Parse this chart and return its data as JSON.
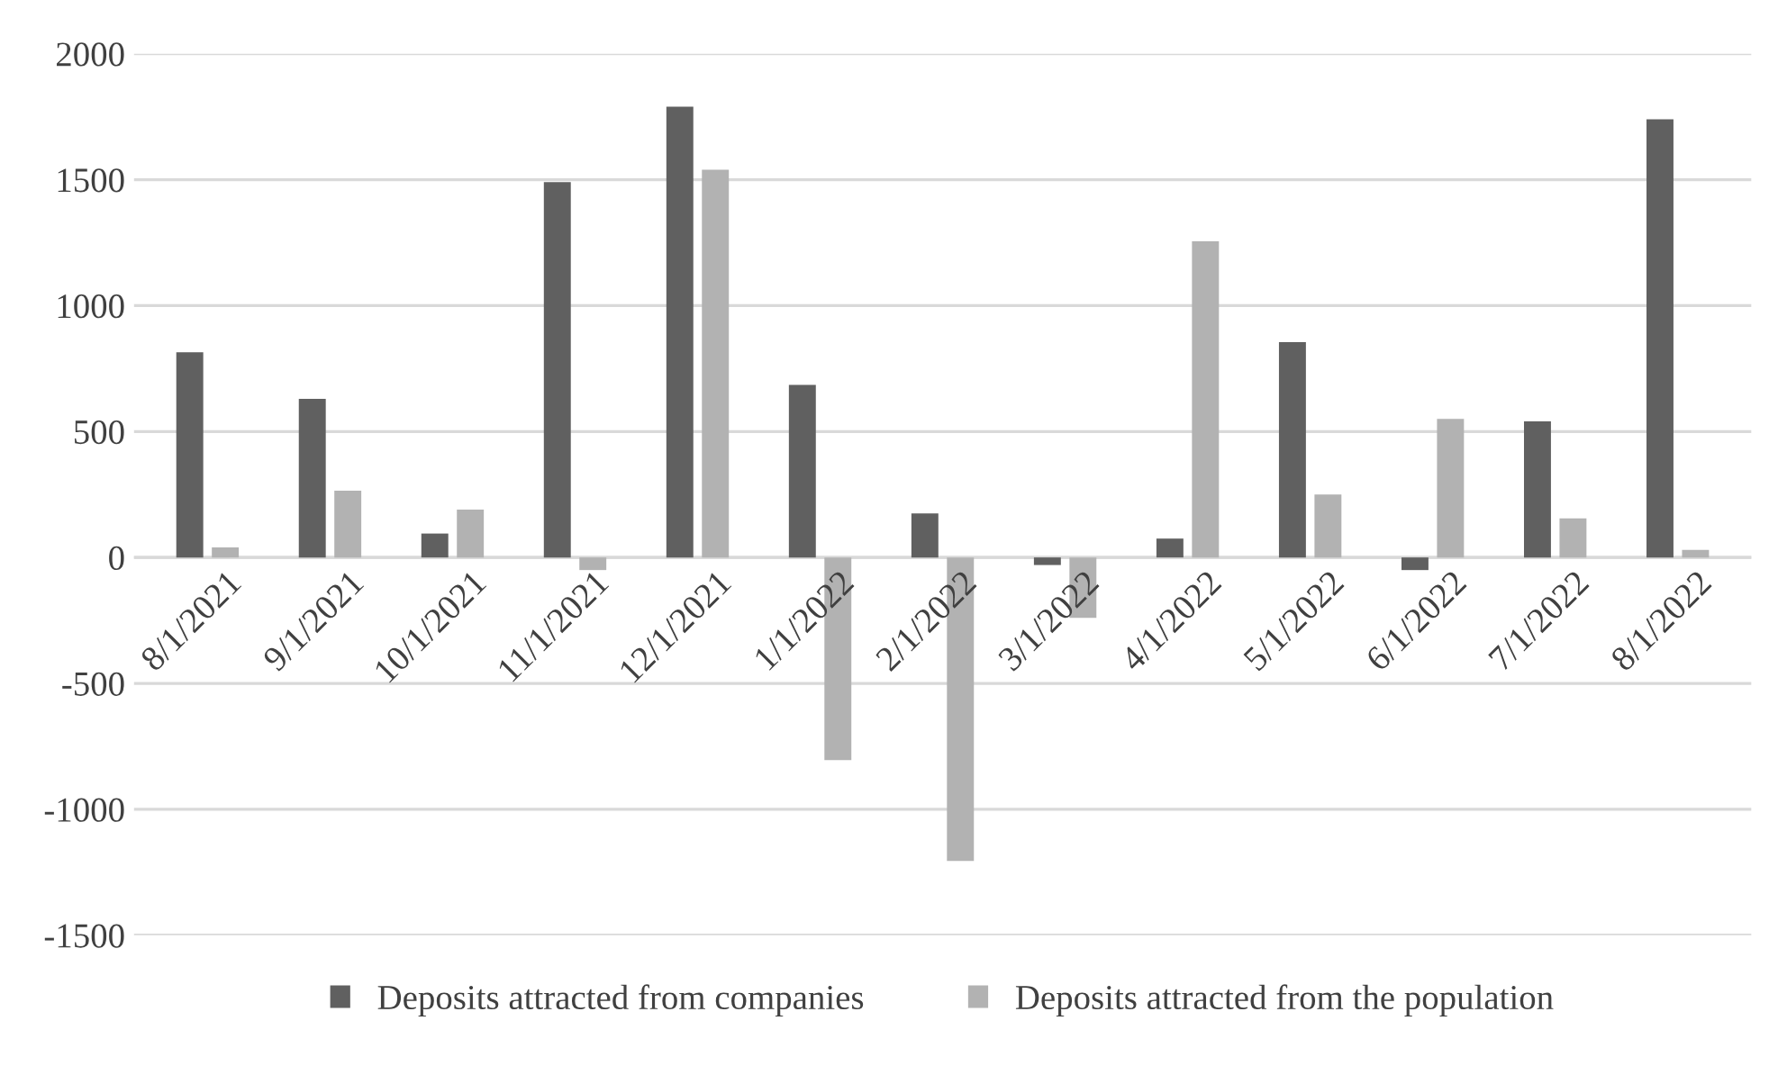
{
  "chart_data": {
    "type": "bar",
    "categories": [
      "8/1/2021",
      "9/1/2021",
      "10/1/2021",
      "11/1/2021",
      "12/1/2021",
      "1/1/2022",
      "2/1/2022",
      "3/1/2022",
      "4/1/2022",
      "5/1/2022",
      "6/1/2022",
      "7/1/2022",
      "8/1/2022"
    ],
    "series": [
      {
        "name": "Deposits attracted from companies",
        "color": "#606060",
        "values": [
          815,
          630,
          95,
          1490,
          1790,
          685,
          175,
          -30,
          75,
          855,
          -50,
          540,
          1740
        ]
      },
      {
        "name": "Deposits attracted from the population",
        "color": "#b2b2b2",
        "values": [
          40,
          265,
          190,
          -50,
          1540,
          -805,
          -1205,
          -240,
          1255,
          250,
          550,
          155,
          30
        ]
      }
    ],
    "ylim": [
      -1500,
      2000
    ],
    "yticks": [
      -1500,
      -1000,
      -500,
      0,
      500,
      1000,
      1500,
      2000
    ],
    "grid": "y",
    "legend": "bottom"
  }
}
